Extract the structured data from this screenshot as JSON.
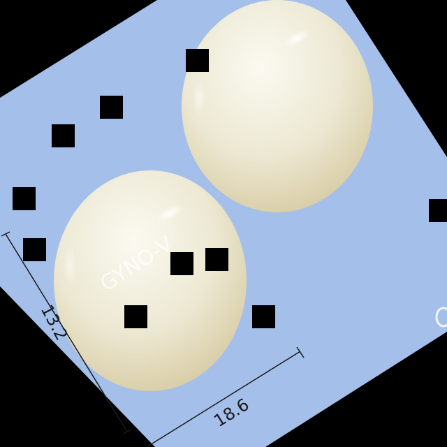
{
  "colors": {
    "backdrop": "#000000",
    "card": "#a4bfe9",
    "capsule_light": "#f5f3e6",
    "capsule_mid": "#ece8d3",
    "capsule_shadow": "#d8cca6",
    "dimension_line": "#1a1a1a",
    "redaction": "#000000"
  },
  "imprint": {
    "text": "GYNO-V"
  },
  "dimensions": {
    "length_mm": "18.6",
    "width_mm": "13.2"
  },
  "redaction_boxes_count": 11
}
